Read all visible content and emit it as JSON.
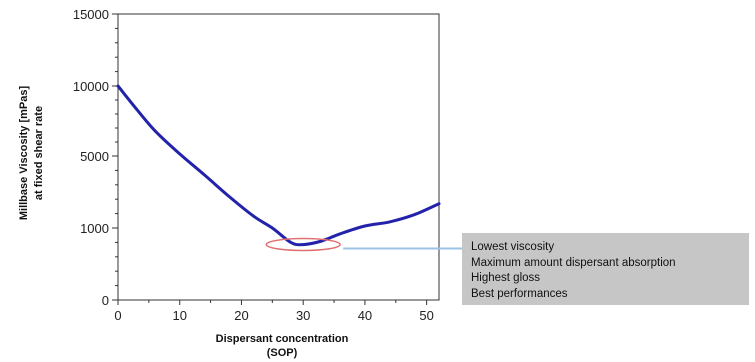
{
  "chart_data": {
    "type": "line",
    "xlabel": [
      "Dispersant concentration",
      "(SOP)"
    ],
    "ylabel": [
      "Millbase Viscosity [mPas]",
      "at fixed shear rate"
    ],
    "x_ticks": [
      "0",
      "10",
      "20",
      "30",
      "40",
      "50"
    ],
    "y_ticks": [
      "0",
      "1000",
      "5000",
      "10000",
      "15000"
    ],
    "xlim": [
      0,
      52
    ],
    "series": [
      {
        "color": "#2222aa",
        "points": [
          {
            "x": 0,
            "y": 10000
          },
          {
            "x": 3,
            "y": 8350
          },
          {
            "x": 6,
            "y": 6800
          },
          {
            "x": 10,
            "y": 5150
          },
          {
            "x": 14,
            "y": 3950
          },
          {
            "x": 18,
            "y": 2750
          },
          {
            "x": 22,
            "y": 1650
          },
          {
            "x": 25,
            "y": 1000
          },
          {
            "x": 28,
            "y": 800
          },
          {
            "x": 30,
            "y": 770
          },
          {
            "x": 33,
            "y": 820
          },
          {
            "x": 36,
            "y": 920
          },
          {
            "x": 40,
            "y": 1110
          },
          {
            "x": 44,
            "y": 1340
          },
          {
            "x": 48,
            "y": 1740
          },
          {
            "x": 52,
            "y": 2350
          }
        ]
      }
    ],
    "highlight": {
      "x": 30,
      "y": 770,
      "color": "#e07070"
    },
    "callout": {
      "line_color": "#9ec3e6",
      "box_color": "#c6c6c6",
      "lines": [
        "Lowest viscosity",
        "Maximum amount dispersant absorption",
        "Highest gloss",
        "Best performances"
      ]
    }
  }
}
